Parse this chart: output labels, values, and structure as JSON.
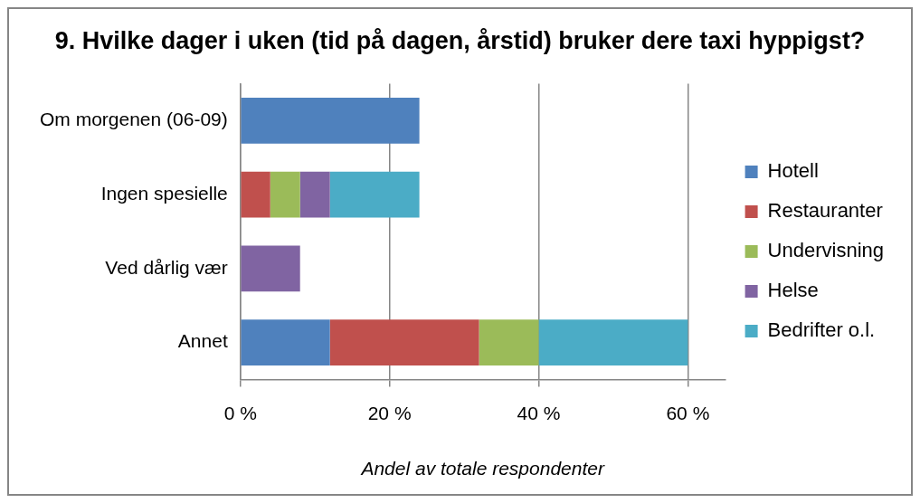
{
  "chart_data": {
    "type": "bar",
    "orientation": "horizontal",
    "stacked": true,
    "title": "9. Hvilke dager i uken (tid på dagen, årstid) bruker dere taxi hyppigst?",
    "xlabel": "Andel av totale respondenter",
    "categories": [
      "Om morgenen (06-09)",
      "Ingen spesielle",
      "Ved dårlig vær",
      "Annet"
    ],
    "series": [
      {
        "name": "Hotell",
        "color": "#4f81bd",
        "values": [
          24,
          null,
          null,
          12
        ]
      },
      {
        "name": "Restauranter",
        "color": "#c0504d",
        "values": [
          null,
          4,
          null,
          20
        ]
      },
      {
        "name": "Undervisning",
        "color": "#9bbb59",
        "values": [
          null,
          4,
          null,
          8
        ]
      },
      {
        "name": "Helse",
        "color": "#8064a2",
        "values": [
          null,
          4,
          8,
          null
        ]
      },
      {
        "name": "Bedrifter o.l.",
        "color": "#4bacc6",
        "values": [
          null,
          12,
          null,
          20
        ]
      }
    ],
    "xlim": [
      0,
      65
    ],
    "xticks": [
      {
        "value": 0,
        "label": "0 %"
      },
      {
        "value": 20,
        "label": "20 %"
      },
      {
        "value": 40,
        "label": "40 %"
      },
      {
        "value": 60,
        "label": "60 %"
      }
    ],
    "grid": "x",
    "legend": "right"
  }
}
